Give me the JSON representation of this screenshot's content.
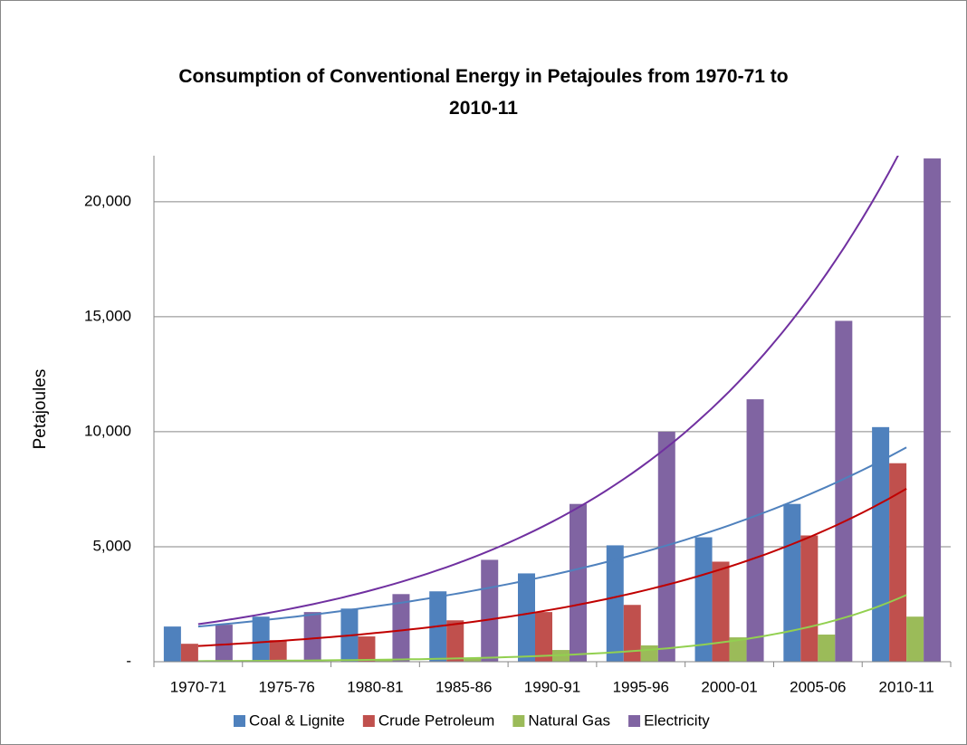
{
  "chart_data": {
    "type": "bar",
    "title": "Consumption of Conventional Energy in Petajoules from 1970-71 to 2010-11",
    "y_label": "Petajoules",
    "categories": [
      "1970-71",
      "1975-76",
      "1980-81",
      "1985-86",
      "1990-91",
      "1995-96",
      "2000-01",
      "2005-06",
      "2010-11"
    ],
    "series": [
      {
        "name": "Coal & Lignite",
        "color": "#4f81bd",
        "trendline": "exponential",
        "trendline_color": "#4f81bd",
        "values": [
          1530,
          1960,
          2310,
          3060,
          3840,
          5060,
          5410,
          6860,
          10200
        ]
      },
      {
        "name": "Crude Petroleum",
        "color": "#c0504d",
        "trendline": "exponential",
        "trendline_color": "#c00000",
        "values": [
          780,
          940,
          1100,
          1800,
          2160,
          2470,
          4350,
          5490,
          8630
        ]
      },
      {
        "name": "Natural Gas",
        "color": "#9bbb59",
        "trendline": "exponential",
        "trendline_color": "#92d050",
        "values": [
          20,
          40,
          60,
          180,
          510,
          710,
          1060,
          1180,
          1960
        ]
      },
      {
        "name": "Electricity",
        "color": "#8064a2",
        "trendline": "exponential",
        "trendline_color": "#7030a0",
        "values": [
          1610,
          2160,
          2940,
          4430,
          6860,
          10000,
          11410,
          14820,
          21880
        ]
      }
    ],
    "ylim": [
      0,
      22000
    ],
    "yticks": [
      {
        "value": 0,
        "label": "-"
      },
      {
        "value": 5000,
        "label": "5,000"
      },
      {
        "value": 10000,
        "label": "10,000"
      },
      {
        "value": 15000,
        "label": "15,000"
      },
      {
        "value": 20000,
        "label": "20,000"
      }
    ],
    "grid": true,
    "legend": "bottom"
  }
}
